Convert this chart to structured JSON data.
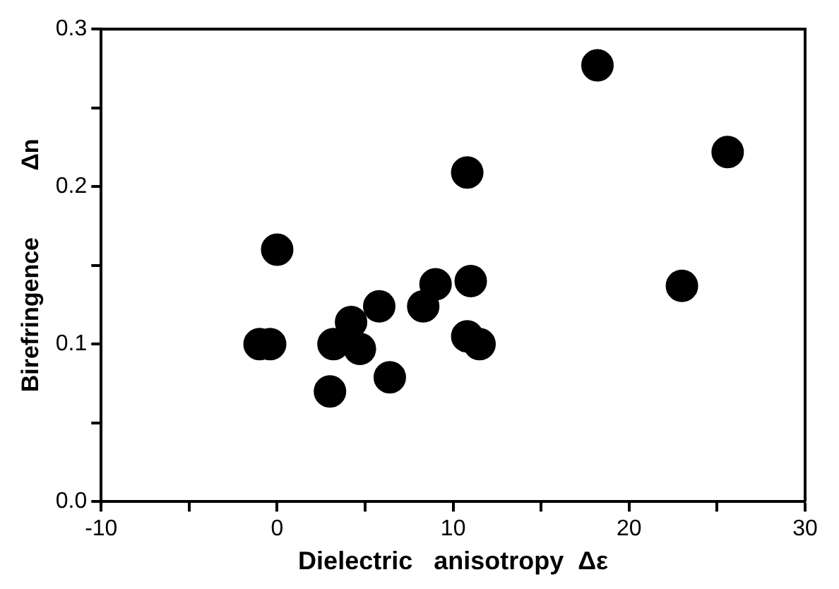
{
  "chart_data": {
    "type": "scatter",
    "xlabel": "Dielectric   anisotropy  Δε",
    "ylabel": "Birefringence          Δn",
    "x": [
      -1,
      -0.4,
      0,
      3,
      3.2,
      4.2,
      4.7,
      5.8,
      6.4,
      8.3,
      9,
      10.8,
      11,
      10.8,
      11.5,
      18.2,
      23,
      25.6
    ],
    "values": [
      0.1,
      0.1,
      0.16,
      0.07,
      0.1,
      0.114,
      0.097,
      0.124,
      0.079,
      0.124,
      0.138,
      0.209,
      0.14,
      0.105,
      0.1,
      0.277,
      0.137,
      0.222
    ],
    "color": "#000000",
    "marker": "circle",
    "xlim": [
      -10,
      30
    ],
    "xticks": [
      -10,
      0,
      10,
      20,
      30
    ],
    "ylim": [
      0,
      0.3
    ],
    "yticks": [
      {
        "value": 0,
        "label": "0.0"
      },
      {
        "value": 0.1,
        "label": "0.1"
      },
      {
        "value": 0.2,
        "label": "0.2"
      },
      {
        "value": 0.3,
        "label": "0.3"
      }
    ],
    "grid": false,
    "legend": false
  }
}
